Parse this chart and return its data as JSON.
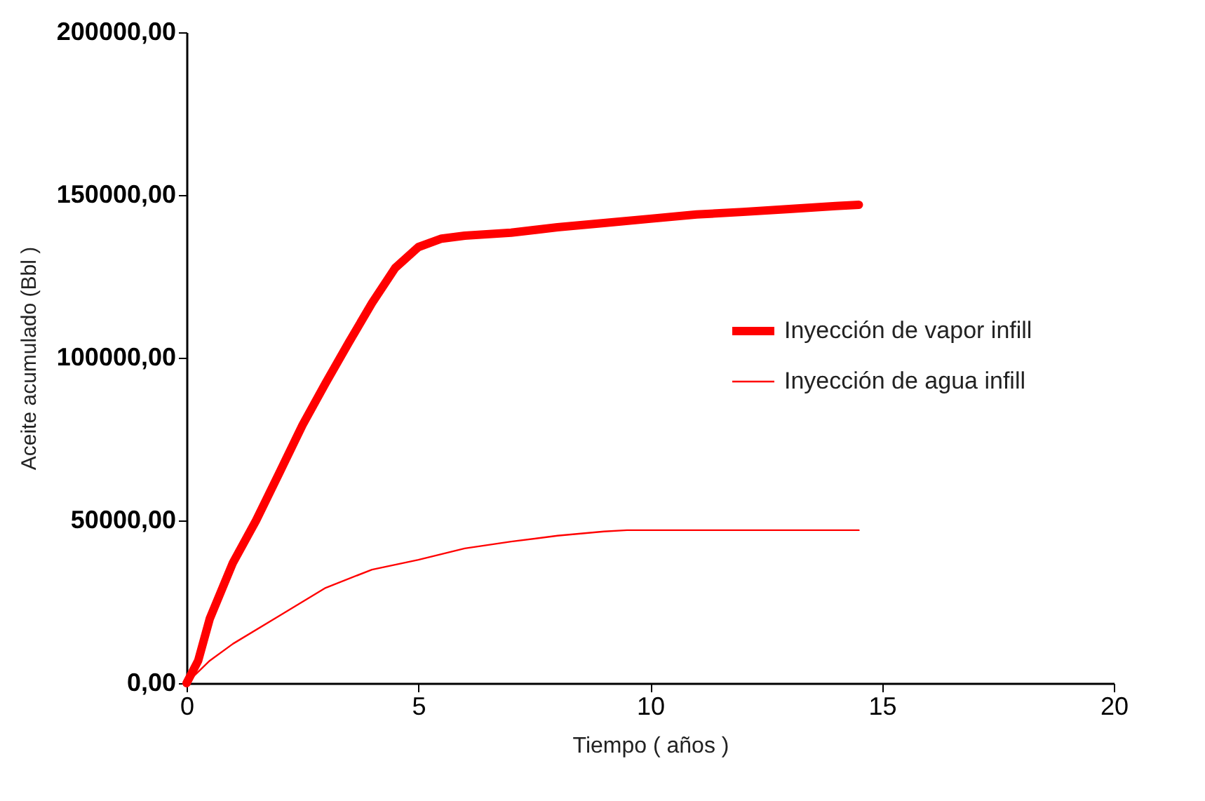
{
  "chart_data": {
    "type": "line",
    "xlabel": "Tiempo ( años )",
    "ylabel": "Aceite acumulado (Bbl )",
    "xlim": [
      0,
      20
    ],
    "xticks": [
      0,
      5,
      10,
      15,
      20
    ],
    "ylim": [
      0,
      200000
    ],
    "yticks": [
      {
        "value": 0,
        "label": "0,00"
      },
      {
        "value": 50000,
        "label": "50000,00"
      },
      {
        "value": 100000,
        "label": "100000,00"
      },
      {
        "value": 150000,
        "label": "150000,00"
      },
      {
        "value": 200000,
        "label": "200000,00"
      }
    ],
    "grid": false,
    "legend": "right",
    "marker": "none",
    "line_style": "solid",
    "series": [
      {
        "name": "Inyección de vapor infill",
        "color": "#ff0000",
        "x": [
          0,
          0.25,
          0.5,
          1,
          1.5,
          2,
          2.5,
          3,
          3.5,
          4,
          4.5,
          5,
          5.5,
          6,
          7,
          8,
          9,
          10,
          11,
          12,
          13,
          14,
          14.5
        ],
        "values": [
          0,
          6900,
          19800,
          37000,
          50000,
          64600,
          79300,
          92200,
          104700,
          116800,
          127600,
          134000,
          136600,
          137500,
          138400,
          140100,
          141400,
          142700,
          144000,
          144800,
          145700,
          146600,
          147000
        ]
      },
      {
        "name": "Inyección de agua infill",
        "color": "#ff0000",
        "x": [
          0,
          0.5,
          1,
          2,
          3,
          4,
          5,
          6,
          7,
          8,
          9,
          9.5,
          10,
          11,
          12,
          13,
          14,
          14.5
        ],
        "values": [
          0,
          6900,
          12100,
          20700,
          29300,
          34900,
          37900,
          41400,
          43500,
          45300,
          46600,
          47000,
          47000,
          47000,
          47000,
          47000,
          47000,
          47000
        ]
      }
    ]
  }
}
